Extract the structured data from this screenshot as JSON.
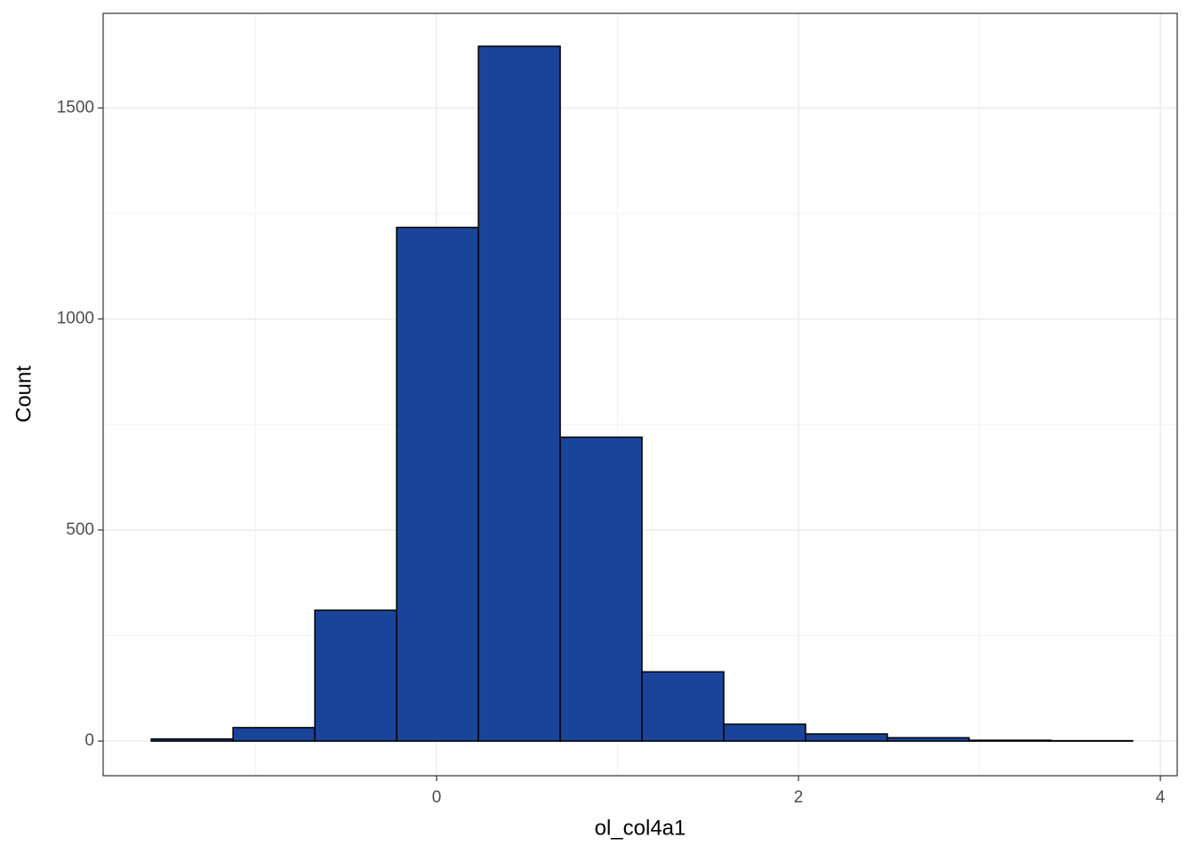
{
  "chart_data": {
    "type": "histogram",
    "x_label": "ol_col4a1",
    "y_label": "Count",
    "bins": [
      -1.577,
      -1.125,
      -0.673,
      -0.221,
      0.231,
      0.683,
      1.135,
      1.587,
      2.039,
      2.491,
      2.943,
      3.395,
      3.847
    ],
    "values": [
      5,
      32,
      310,
      1217,
      1646,
      720,
      164,
      40,
      17,
      8,
      2,
      1
    ],
    "color": "#19449a",
    "edge_color": "#000000",
    "xlim": [
      -1.843,
      4.093
    ],
    "xticks": [
      0,
      2,
      4
    ],
    "minor_xticks": [
      -1,
      1,
      3
    ],
    "ylim": [
      -82,
      1724
    ],
    "yticks": [
      0,
      500,
      1000,
      1500
    ],
    "minor_yticks": [
      250,
      750,
      1250
    ],
    "grid": true
  }
}
